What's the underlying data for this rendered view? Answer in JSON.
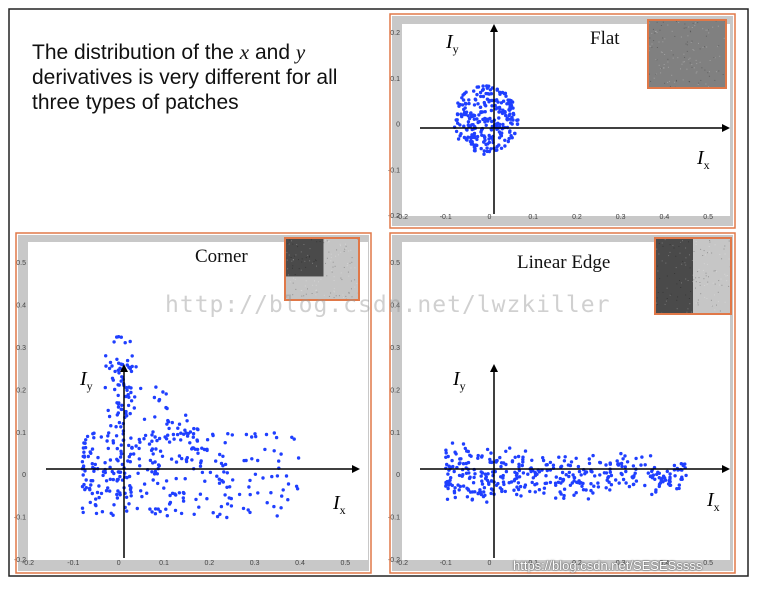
{
  "caption": {
    "part1": "The distribution of the ",
    "x": "x",
    "part2": " and ",
    "y": "y",
    "part3": " derivatives is very different for all three types of patches"
  },
  "watermark": "http://blog.csdn.net/lwzkiller",
  "credit": "https://blog.csdn.net/SESESssss",
  "colors": {
    "points": "#1f3fff",
    "frame": "#e07848",
    "axis_bg": "#c8c8c8"
  },
  "chart_data": [
    {
      "type": "scatter",
      "title": "Flat",
      "xlabel": "I_x",
      "ylabel": "I_y",
      "xlabel_main": "I",
      "xlabel_sub": "x",
      "ylabel_main": "I",
      "ylabel_sub": "y",
      "xlim": [
        -0.2,
        0.55
      ],
      "ylim": [
        -0.2,
        0.22
      ],
      "xticks": [
        "-0.2",
        "-0.1",
        "0",
        "0.1",
        "0.2",
        "0.3",
        "0.4",
        "0.5"
      ],
      "yticks": [
        "-0.2",
        "-0.1",
        "0",
        "0.1",
        "0.2"
      ],
      "patch": "flat",
      "cluster": {
        "x_range": [
          -0.1,
          0.08
        ],
        "y_range": [
          -0.07,
          0.09
        ],
        "count": 260
      }
    },
    {
      "type": "scatter",
      "title": "Corner",
      "xlabel": "I_x",
      "ylabel": "I_y",
      "xlabel_main": "I",
      "xlabel_sub": "x",
      "ylabel_main": "I",
      "ylabel_sub": "y",
      "xlim": [
        -0.2,
        0.55
      ],
      "ylim": [
        -0.2,
        0.55
      ],
      "xticks": [
        "-0.2",
        "-0.1",
        "0",
        "0.1",
        "0.2",
        "0.3",
        "0.4",
        "0.5"
      ],
      "yticks": [
        "-0.2",
        "-0.1",
        "0",
        "0.1",
        "0.2",
        "0.3",
        "0.4",
        "0.5"
      ],
      "patch": "corner",
      "cluster": {
        "x_range": [
          -0.08,
          0.4
        ],
        "y_range": [
          -0.1,
          0.35
        ],
        "count": 420
      }
    },
    {
      "type": "scatter",
      "title": "Linear Edge",
      "xlabel": "I_x",
      "ylabel": "I_y",
      "xlabel_main": "I",
      "xlabel_sub": "x",
      "ylabel_main": "I",
      "ylabel_sub": "y",
      "xlim": [
        -0.2,
        0.55
      ],
      "ylim": [
        -0.2,
        0.55
      ],
      "xticks": [
        "-0.2",
        "-0.1",
        "0",
        "0.1",
        "0.2",
        "0.3",
        "0.4",
        "0.5"
      ],
      "yticks": [
        "-0.2",
        "-0.1",
        "0",
        "0.1",
        "0.2",
        "0.3",
        "0.4",
        "0.5"
      ],
      "patch": "edge",
      "cluster": {
        "x_range": [
          -0.1,
          0.45
        ],
        "y_range": [
          -0.07,
          0.08
        ],
        "count": 380
      }
    }
  ]
}
